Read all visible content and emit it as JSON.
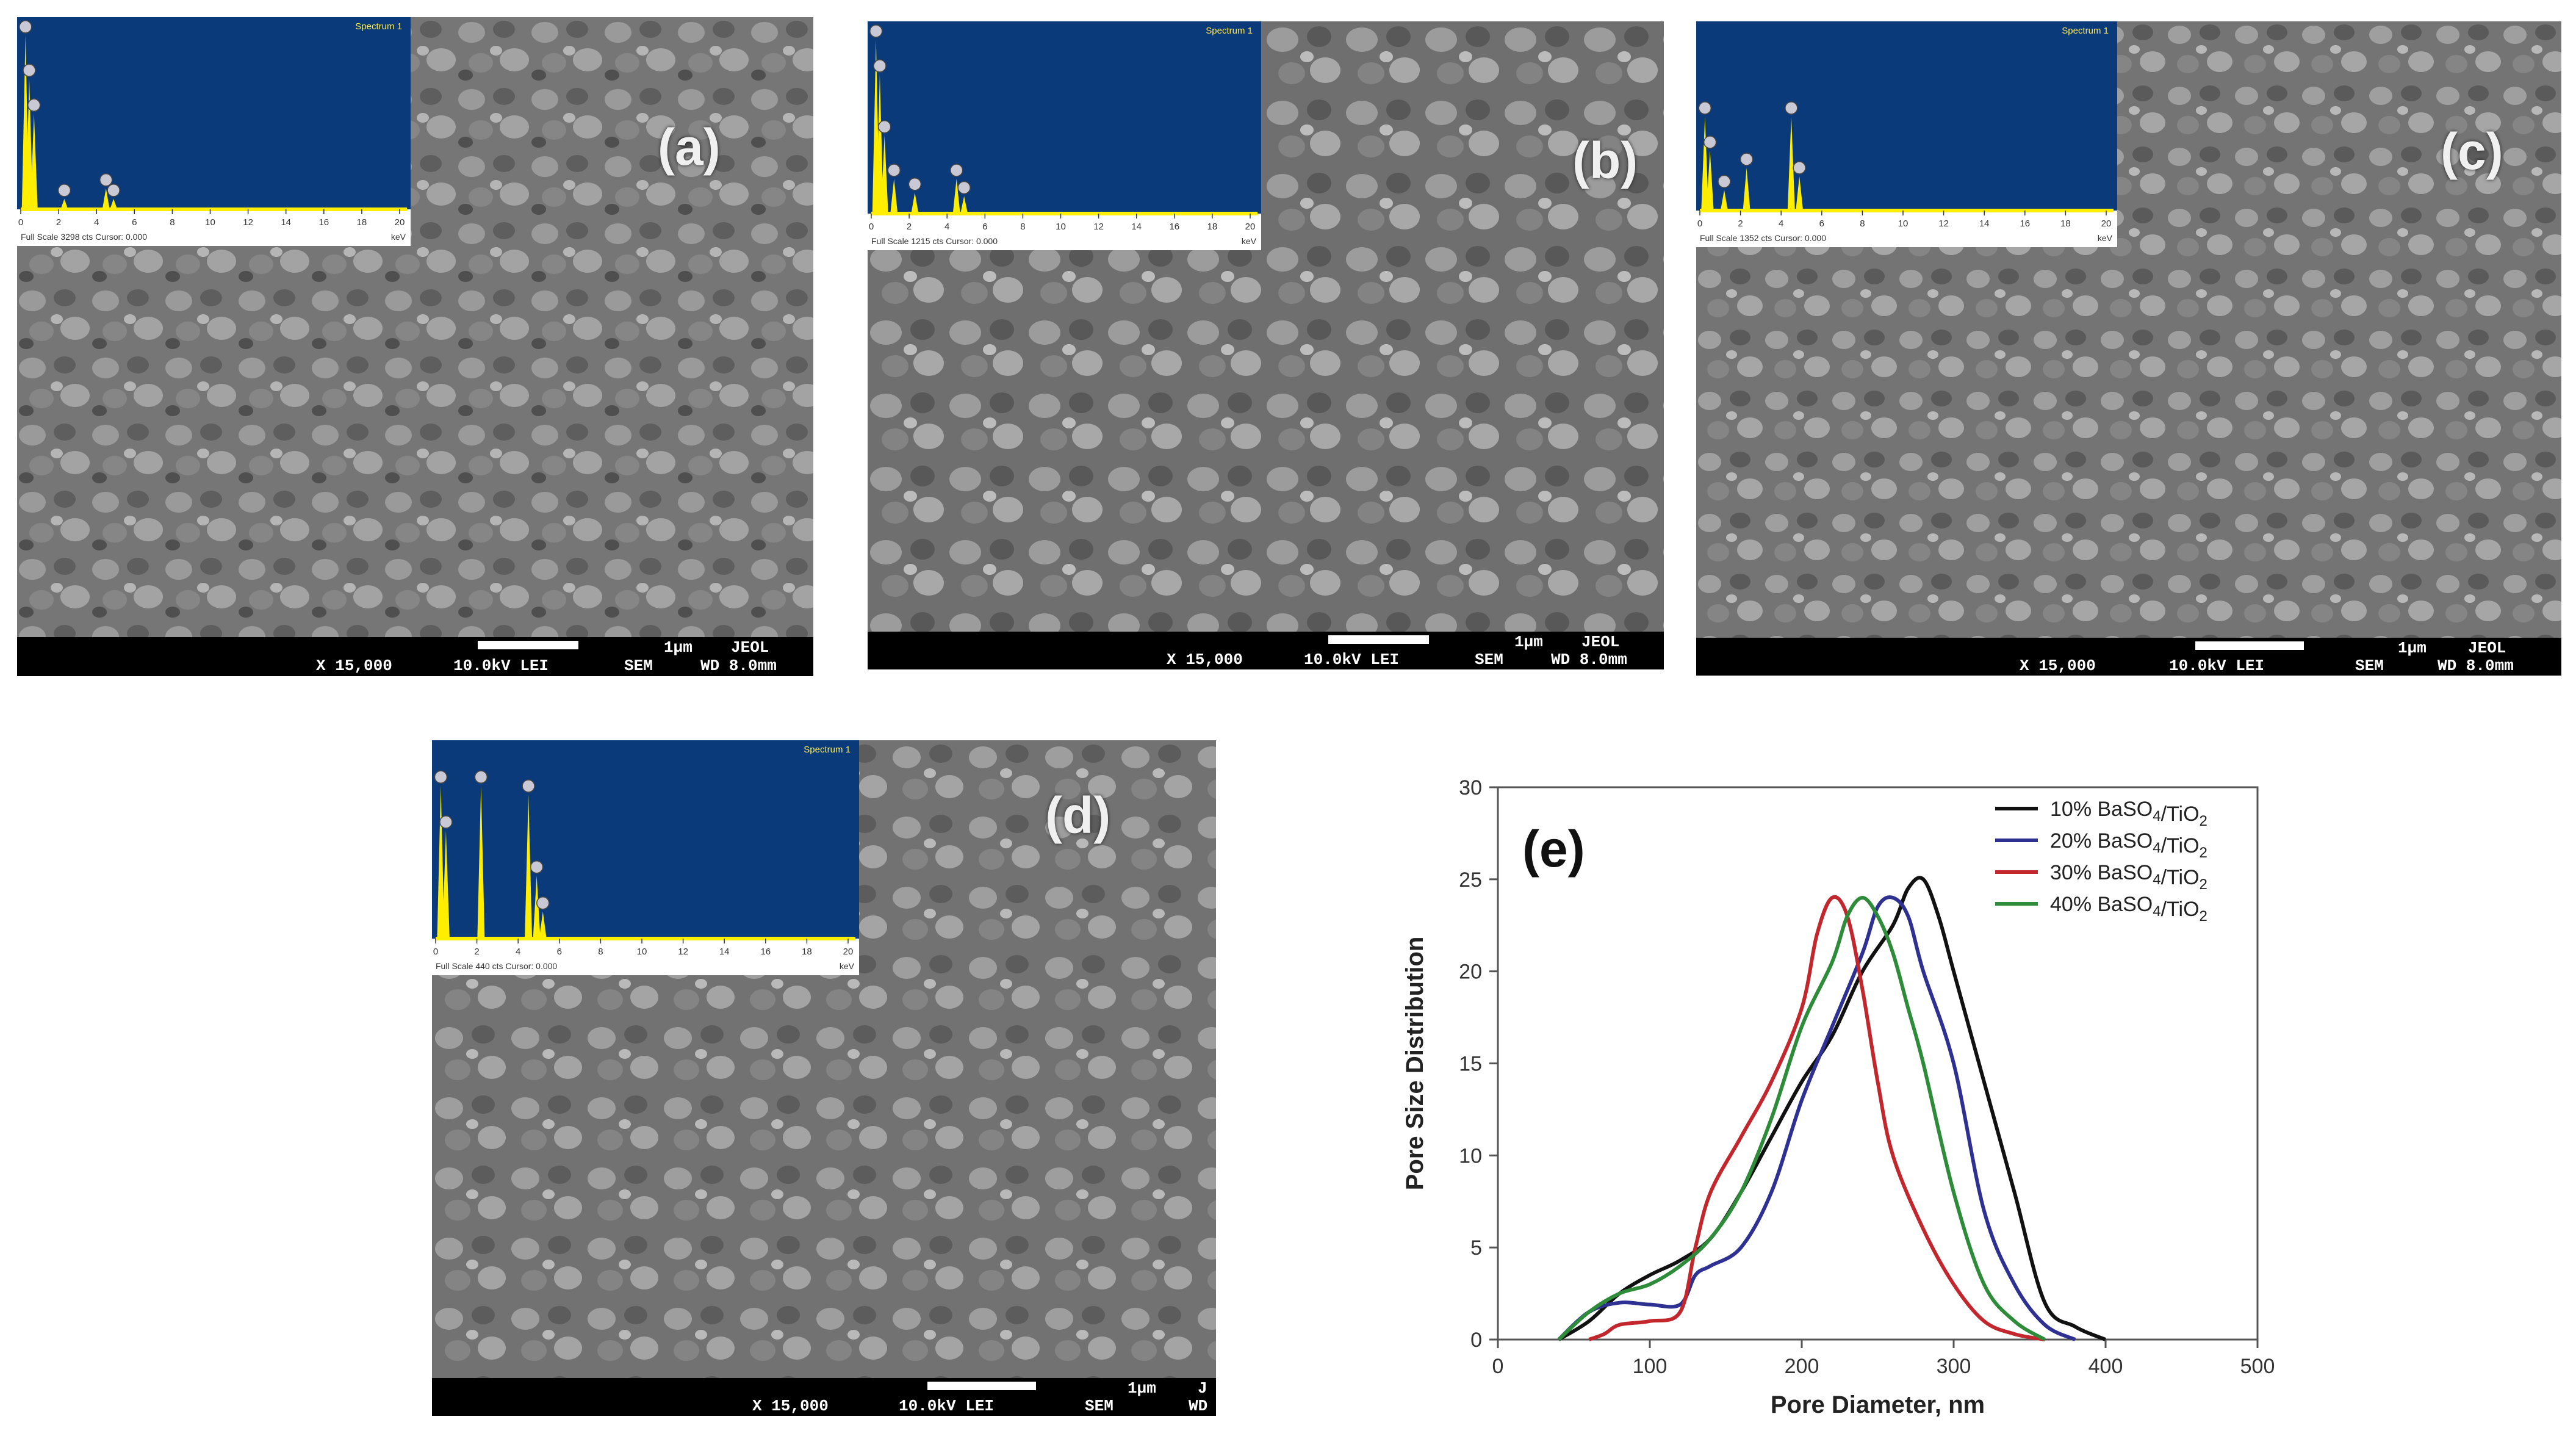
{
  "panels": [
    {
      "id": "a",
      "label": "(a)",
      "databar": {
        "mag": "X 15,000",
        "kv": "10.0kV LEI",
        "det": "SEM",
        "wd": "WD 8.0mm",
        "scale": "1µm",
        "brand": "JEOL"
      },
      "eds": {
        "spectrum": "Spectrum 1",
        "footer": "Full Scale 3298 cts Cursor: 0.000",
        "unit": "keV",
        "ticks": [
          "0",
          "2",
          "4",
          "6",
          "8",
          "10",
          "12",
          "14",
          "16",
          "18",
          "20"
        ],
        "peaks": [
          [
            0.25,
            1.0
          ],
          [
            0.45,
            0.75
          ],
          [
            0.7,
            0.55
          ],
          [
            2.3,
            0.06
          ],
          [
            4.5,
            0.12
          ],
          [
            4.9,
            0.06
          ]
        ]
      }
    },
    {
      "id": "b",
      "label": "(b)",
      "databar": {
        "mag": "X 15,000",
        "kv": "10.0kV LEI",
        "det": "SEM",
        "wd": "WD 8.0mm",
        "scale": "1µm",
        "brand": "JEOL"
      },
      "eds": {
        "spectrum": "Spectrum 1",
        "footer": "Full Scale 1215 cts Cursor: 0.000",
        "unit": "keV",
        "ticks": [
          "0",
          "2",
          "4",
          "6",
          "8",
          "10",
          "12",
          "14",
          "16",
          "18",
          "20"
        ],
        "peaks": [
          [
            0.25,
            1.0
          ],
          [
            0.45,
            0.8
          ],
          [
            0.7,
            0.45
          ],
          [
            1.2,
            0.2
          ],
          [
            2.3,
            0.12
          ],
          [
            4.5,
            0.2
          ],
          [
            4.9,
            0.1
          ]
        ]
      }
    },
    {
      "id": "c",
      "label": "(c)",
      "databar": {
        "mag": "X 15,000",
        "kv": "10.0kV LEI",
        "det": "SEM",
        "wd": "WD 8.0mm",
        "scale": "1µm",
        "brand": "JEOL"
      },
      "eds": {
        "spectrum": "Spectrum 1",
        "footer": "Full Scale 1352 cts Cursor: 0.000",
        "unit": "keV",
        "ticks": [
          "0",
          "2",
          "4",
          "6",
          "8",
          "10",
          "12",
          "14",
          "16",
          "18",
          "20"
        ],
        "peaks": [
          [
            0.25,
            0.55
          ],
          [
            0.5,
            0.35
          ],
          [
            1.2,
            0.12
          ],
          [
            2.3,
            0.25
          ],
          [
            4.5,
            0.55
          ],
          [
            4.9,
            0.2
          ]
        ]
      }
    },
    {
      "id": "d",
      "label": "(d)",
      "databar": {
        "mag": "X 15,000",
        "kv": "10.0kV LEI",
        "det": "SEM",
        "wd": "WD",
        "scale": "1µm",
        "brand": "J"
      },
      "eds": {
        "spectrum": "Spectrum 1",
        "footer": "Full Scale 440 cts Cursor: 0.000",
        "unit": "keV",
        "ticks": [
          "0",
          "2",
          "4",
          "6",
          "8",
          "10",
          "12",
          "14",
          "16",
          "18",
          "20"
        ],
        "peaks": [
          [
            0.25,
            0.85
          ],
          [
            0.5,
            0.6
          ],
          [
            2.2,
            0.85
          ],
          [
            4.5,
            0.8
          ],
          [
            4.9,
            0.35
          ],
          [
            5.2,
            0.15
          ]
        ]
      }
    }
  ],
  "chart_data": {
    "type": "line",
    "panel_label": "(e)",
    "xlabel": "Pore Diameter, nm",
    "ylabel": "Pore Size Distribution",
    "xlim": [
      0,
      500
    ],
    "ylim": [
      0,
      30
    ],
    "xticks": [
      0,
      100,
      200,
      300,
      400,
      500
    ],
    "yticks": [
      0,
      5,
      10,
      15,
      20,
      25,
      30
    ],
    "legend_position": "top-right",
    "series": [
      {
        "name": "10% BaSO4/TiO2",
        "name_base": "10% BaSO",
        "sub1": "4",
        "mid": "/TiO",
        "sub2": "2",
        "color": "#111111",
        "x": [
          40,
          60,
          80,
          100,
          120,
          140,
          160,
          180,
          200,
          220,
          240,
          260,
          270,
          280,
          290,
          300,
          320,
          340,
          360,
          380,
          400
        ],
        "y": [
          0,
          1,
          2.5,
          3.5,
          4.3,
          5.5,
          8,
          11,
          14,
          16.5,
          20,
          22.5,
          24.5,
          25,
          23,
          20,
          14,
          8,
          2,
          0.7,
          0
        ]
      },
      {
        "name": "20% BaSO4/TiO2",
        "name_base": "20% BaSO",
        "sub1": "4",
        "mid": "/TiO",
        "sub2": "2",
        "color": "#2e3192",
        "x": [
          40,
          60,
          80,
          100,
          120,
          130,
          140,
          160,
          180,
          200,
          220,
          240,
          250,
          260,
          270,
          280,
          300,
          320,
          340,
          360,
          380
        ],
        "y": [
          0,
          1.5,
          2,
          1.9,
          1.9,
          3.5,
          4,
          5,
          8,
          13,
          17,
          21,
          23.5,
          24,
          23,
          20,
          15,
          7,
          3,
          0.8,
          0
        ]
      },
      {
        "name": "30% BaSO4/TiO2",
        "name_base": "30% BaSO",
        "sub1": "4",
        "mid": "/TiO",
        "sub2": "2",
        "color": "#c1272d",
        "x": [
          60,
          70,
          80,
          100,
          120,
          130,
          140,
          160,
          180,
          200,
          210,
          220,
          230,
          240,
          250,
          260,
          280,
          300,
          320,
          340,
          360
        ],
        "y": [
          0,
          0.3,
          0.8,
          1,
          1.5,
          5,
          8,
          11,
          14,
          18,
          22,
          24,
          23,
          19,
          14,
          10,
          6,
          3,
          1,
          0.3,
          0
        ]
      },
      {
        "name": "40% BaSO4/TiO2",
        "name_base": "40% BaSO",
        "sub1": "4",
        "mid": "/TiO",
        "sub2": "2",
        "color": "#2e8b3a",
        "x": [
          40,
          60,
          80,
          100,
          120,
          140,
          160,
          180,
          200,
          220,
          230,
          240,
          250,
          260,
          270,
          280,
          300,
          320,
          340,
          360
        ],
        "y": [
          0,
          1.5,
          2.5,
          3,
          4,
          5.5,
          8,
          12,
          17,
          20.5,
          23,
          24,
          23,
          21,
          18,
          15,
          8,
          3,
          1,
          0
        ]
      }
    ]
  }
}
